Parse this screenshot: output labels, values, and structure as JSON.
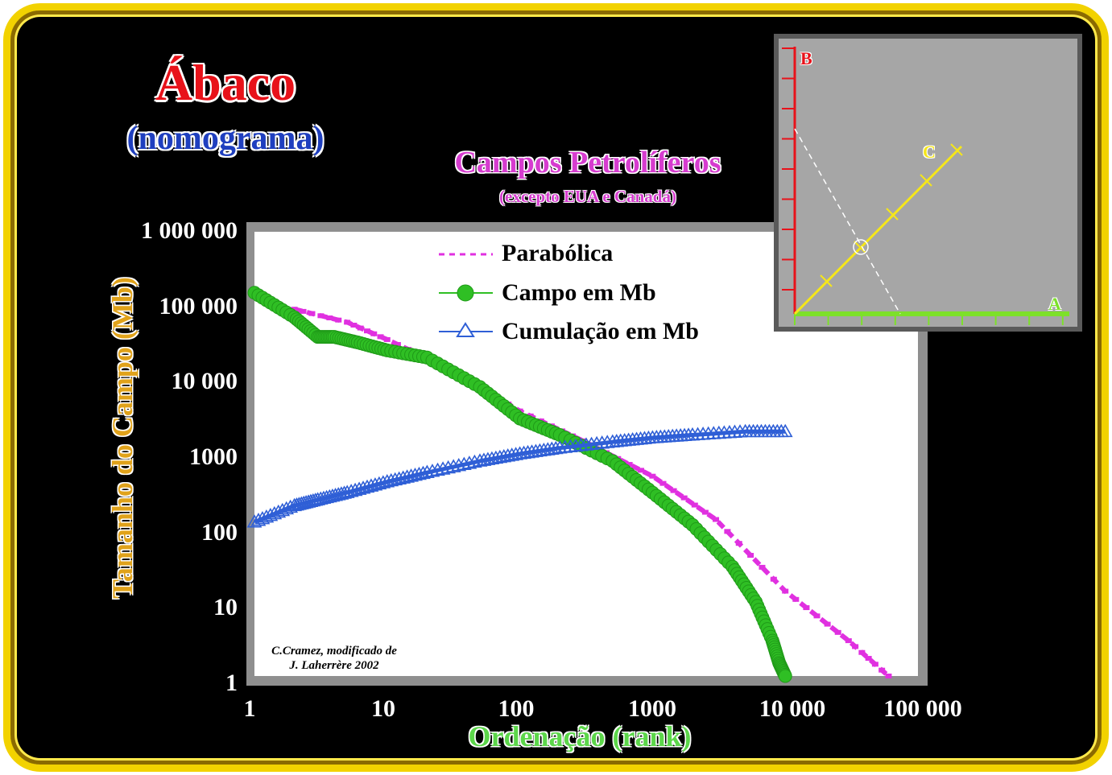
{
  "header": {
    "title": "Ábaco",
    "subtitle": "(nomograma)"
  },
  "credit": {
    "line1": "C.Cramez, modificado de",
    "line2": "J. Laherrère 2002"
  },
  "colors": {
    "frame": "#f2d200",
    "background": "#000000",
    "parabolica": "#e030e0",
    "campo": "#2fbf24",
    "cumulacao": "#2f5fd6",
    "inset_axis_b": "#e8121a",
    "inset_axis_a": "#7de02a",
    "inset_line_c": "#f5e61a"
  },
  "chart_data": [
    {
      "type": "line",
      "title": "Campos Petrolíferos",
      "subtitle": "(excepto EUA  e Canadá)",
      "xlabel": "Ordenação (rank)",
      "ylabel": "Tamanho do Campo (Mb)",
      "x_scale": "log",
      "y_scale": "log",
      "xlim": [
        1,
        100000
      ],
      "ylim": [
        1,
        1000000
      ],
      "x_ticks": [
        "1",
        "10",
        "100",
        "1000",
        "10 000",
        "100 000"
      ],
      "y_ticks": [
        "1",
        "10",
        "100",
        "1000",
        "10 000",
        "100 000",
        "1 000 000"
      ],
      "legend_position": "top-center",
      "series": [
        {
          "name": "Parabólica",
          "style": "dashed",
          "marker": "none",
          "x": [
            2,
            5,
            10,
            30,
            100,
            300,
            1000,
            3000,
            10000,
            30000,
            60000
          ],
          "y": [
            90000,
            60000,
            35000,
            14000,
            3800,
            1500,
            500,
            130,
            14,
            3,
            1
          ]
        },
        {
          "name": "Campo em Mb",
          "style": "solid",
          "marker": "circle",
          "x": [
            1,
            2,
            3,
            4,
            6,
            10,
            20,
            50,
            100,
            200,
            500,
            1000,
            2000,
            4000,
            6000,
            8000,
            9000,
            10000
          ],
          "y": [
            150000,
            70000,
            38000,
            38000,
            32000,
            25000,
            20000,
            8000,
            3000,
            1800,
            800,
            300,
            110,
            30,
            10,
            3,
            1.5,
            1
          ]
        },
        {
          "name": "Cumulação em Mb",
          "style": "solid",
          "marker": "triangle",
          "x": [
            1,
            2,
            3,
            5,
            10,
            20,
            50,
            100,
            200,
            500,
            1000,
            2000,
            5000,
            10000
          ],
          "y": [
            120,
            200,
            240,
            300,
            420,
            560,
            800,
            1000,
            1200,
            1450,
            1650,
            1800,
            2000,
            2000
          ]
        }
      ]
    },
    {
      "type": "line",
      "title": "",
      "axes": [
        "A",
        "B",
        "C"
      ],
      "annotation": "nomogram construction: line C crossing dashed reading line at marked circle"
    }
  ]
}
